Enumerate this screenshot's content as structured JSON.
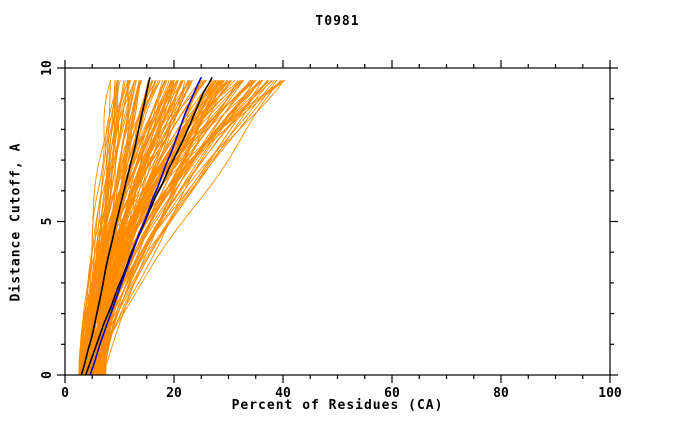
{
  "chart_data": {
    "type": "line",
    "title": "T0981",
    "xlabel": "Percent of Residues (CA)",
    "ylabel": "Distance Cutoff, A",
    "xlim": [
      0,
      100
    ],
    "ylim": [
      0,
      10
    ],
    "x_major_ticks": [
      0,
      20,
      40,
      60,
      80,
      100
    ],
    "x_minor_step": 5,
    "y_major_ticks": [
      0,
      5,
      10
    ],
    "y_minor_step": 1,
    "grid": false,
    "frame": true,
    "legend": "none",
    "colors": {
      "ensemble": "#ff8c00",
      "model_black": "#000000",
      "model_blue": "#0000cd",
      "axis": "#000000",
      "background": "#ffffff"
    },
    "series": [
      {
        "name": "black-model-1",
        "color_key": "model_black",
        "width": 1.6,
        "points": [
          [
            3,
            0
          ],
          [
            3.5,
            0.3
          ],
          [
            4.2,
            0.8
          ],
          [
            5,
            1.3
          ],
          [
            5.6,
            1.8
          ],
          [
            6.2,
            2.3
          ],
          [
            6.9,
            2.9
          ],
          [
            7.4,
            3.4
          ],
          [
            8,
            3.9
          ],
          [
            8.7,
            4.4
          ],
          [
            9.3,
            4.9
          ],
          [
            10,
            5.4
          ],
          [
            10.8,
            6.0
          ],
          [
            11.5,
            6.5
          ],
          [
            12.2,
            7.0
          ],
          [
            12.8,
            7.4
          ],
          [
            13.4,
            7.9
          ],
          [
            14,
            8.4
          ],
          [
            14.6,
            8.9
          ],
          [
            15.2,
            9.4
          ],
          [
            15.6,
            9.7
          ]
        ]
      },
      {
        "name": "black-model-2",
        "color_key": "model_black",
        "width": 1.6,
        "points": [
          [
            3.8,
            0
          ],
          [
            4.8,
            0.5
          ],
          [
            6,
            1.1
          ],
          [
            7.2,
            1.7
          ],
          [
            8.4,
            2.2
          ],
          [
            9.6,
            2.8
          ],
          [
            10.8,
            3.3
          ],
          [
            12,
            3.9
          ],
          [
            13.2,
            4.4
          ],
          [
            14.2,
            4.8
          ],
          [
            15.4,
            5.3
          ],
          [
            16.6,
            5.8
          ],
          [
            17.8,
            6.2
          ],
          [
            19,
            6.7
          ],
          [
            20.4,
            7.2
          ],
          [
            21.8,
            7.7
          ],
          [
            23,
            8.2
          ],
          [
            24.2,
            8.7
          ],
          [
            25.4,
            9.2
          ],
          [
            26.4,
            9.5
          ],
          [
            27,
            9.7
          ]
        ]
      },
      {
        "name": "blue-model",
        "color_key": "model_blue",
        "width": 1.6,
        "points": [
          [
            4.6,
            0
          ],
          [
            5.4,
            0.4
          ],
          [
            6.4,
            1.0
          ],
          [
            7.6,
            1.6
          ],
          [
            8.8,
            2.2
          ],
          [
            10,
            2.8
          ],
          [
            11.2,
            3.4
          ],
          [
            12.4,
            4.0
          ],
          [
            13.6,
            4.6
          ],
          [
            14.8,
            5.1
          ],
          [
            16,
            5.7
          ],
          [
            17.2,
            6.2
          ],
          [
            18.4,
            6.8
          ],
          [
            19.6,
            7.3
          ],
          [
            20.8,
            7.9
          ],
          [
            22,
            8.5
          ],
          [
            23.2,
            9.0
          ],
          [
            24.2,
            9.4
          ],
          [
            25,
            9.7
          ]
        ]
      }
    ],
    "ensemble": {
      "name": "prediction-ensemble",
      "color_key": "ensemble",
      "count": 150,
      "width": 0.9,
      "seed": 20981,
      "y_top": 9.7,
      "x_start_range": [
        2.5,
        7.5
      ],
      "x_top_range": [
        8,
        41
      ],
      "exponent_range": [
        1.1,
        2.1
      ],
      "wobble_amp_range": [
        0.2,
        0.9
      ]
    }
  }
}
